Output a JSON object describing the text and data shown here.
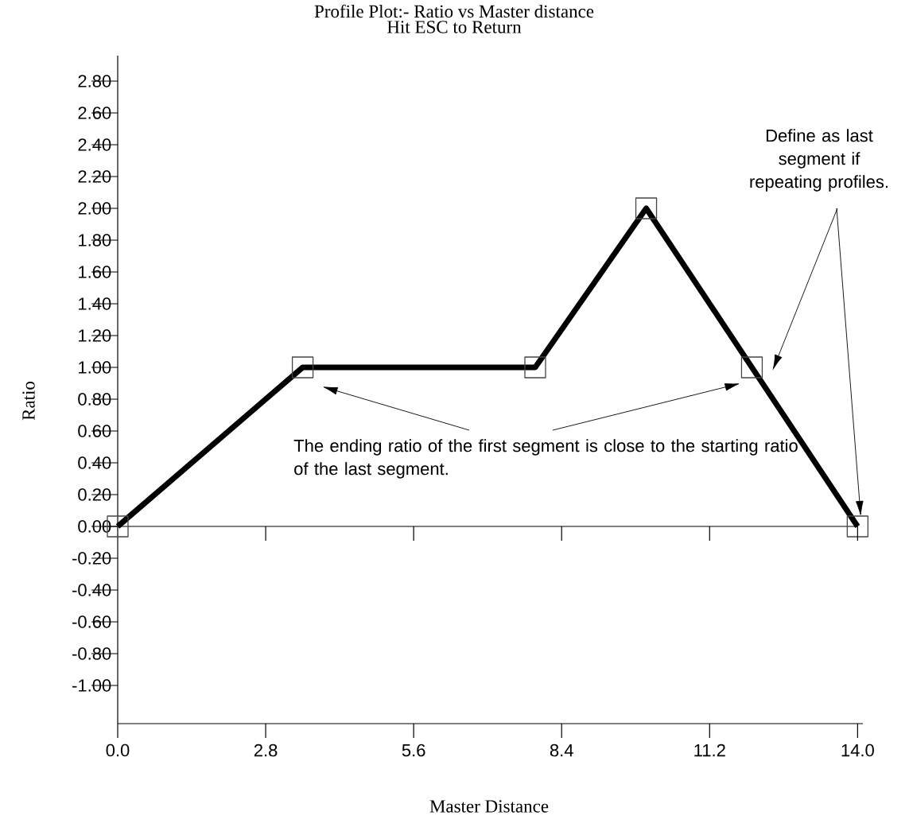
{
  "chart_data": {
    "type": "line",
    "title": "Profile Plot:-  Ratio vs Master distance",
    "subtitle": "Hit ESC to Return",
    "xlabel": "Master Distance",
    "ylabel": "Ratio",
    "x": [
      0,
      3.5,
      7.9,
      10.0,
      12.0,
      14.0
    ],
    "series": [
      {
        "color": "#000000",
        "values": [
          0,
          1.0,
          1.0,
          2.0,
          1.0,
          0
        ]
      }
    ],
    "marker": "square",
    "line_style": "solid",
    "grid": false,
    "xlim": [
      0,
      14.1
    ],
    "ylim": [
      -1.24,
      2.96
    ],
    "xticks": [
      {
        "value": 0,
        "label": "0.0"
      },
      {
        "value": 2.8,
        "label": "2.8"
      },
      {
        "value": 5.6,
        "label": "5.6"
      },
      {
        "value": 8.4,
        "label": "8.4"
      },
      {
        "value": 11.2,
        "label": "11.2"
      },
      {
        "value": 14.0,
        "label": "14.0"
      }
    ],
    "yticks": [
      {
        "value": -1.0,
        "label": "-1.00"
      },
      {
        "value": -0.8,
        "label": "-0.80"
      },
      {
        "value": -0.6,
        "label": "-0.60"
      },
      {
        "value": -0.4,
        "label": "-0.40"
      },
      {
        "value": -0.2,
        "label": "-0.20"
      },
      {
        "value": 0,
        "label": "0.00"
      },
      {
        "value": 0.2,
        "label": "0.20"
      },
      {
        "value": 0.4,
        "label": "0.40"
      },
      {
        "value": 0.6,
        "label": "0.60"
      },
      {
        "value": 0.8,
        "label": "0.80"
      },
      {
        "value": 1.0,
        "label": "1.00"
      },
      {
        "value": 1.2,
        "label": "1.20"
      },
      {
        "value": 1.4,
        "label": "1.40"
      },
      {
        "value": 1.6,
        "label": "1.60"
      },
      {
        "value": 1.8,
        "label": "1.80"
      },
      {
        "value": 2.0,
        "label": "2.00"
      },
      {
        "value": 2.2,
        "label": "2.20"
      },
      {
        "value": 2.4,
        "label": "2.40"
      },
      {
        "value": 2.6,
        "label": "2.60"
      },
      {
        "value": 2.8,
        "label": "2.80"
      }
    ],
    "ref_lines": [
      {
        "axis": "y",
        "value": 0,
        "color": "#000000"
      }
    ],
    "annotations": [
      "The ending ratio of the first segment is close to the starting ratio of the last segment.",
      "Define as last segment if repeating profiles."
    ]
  }
}
